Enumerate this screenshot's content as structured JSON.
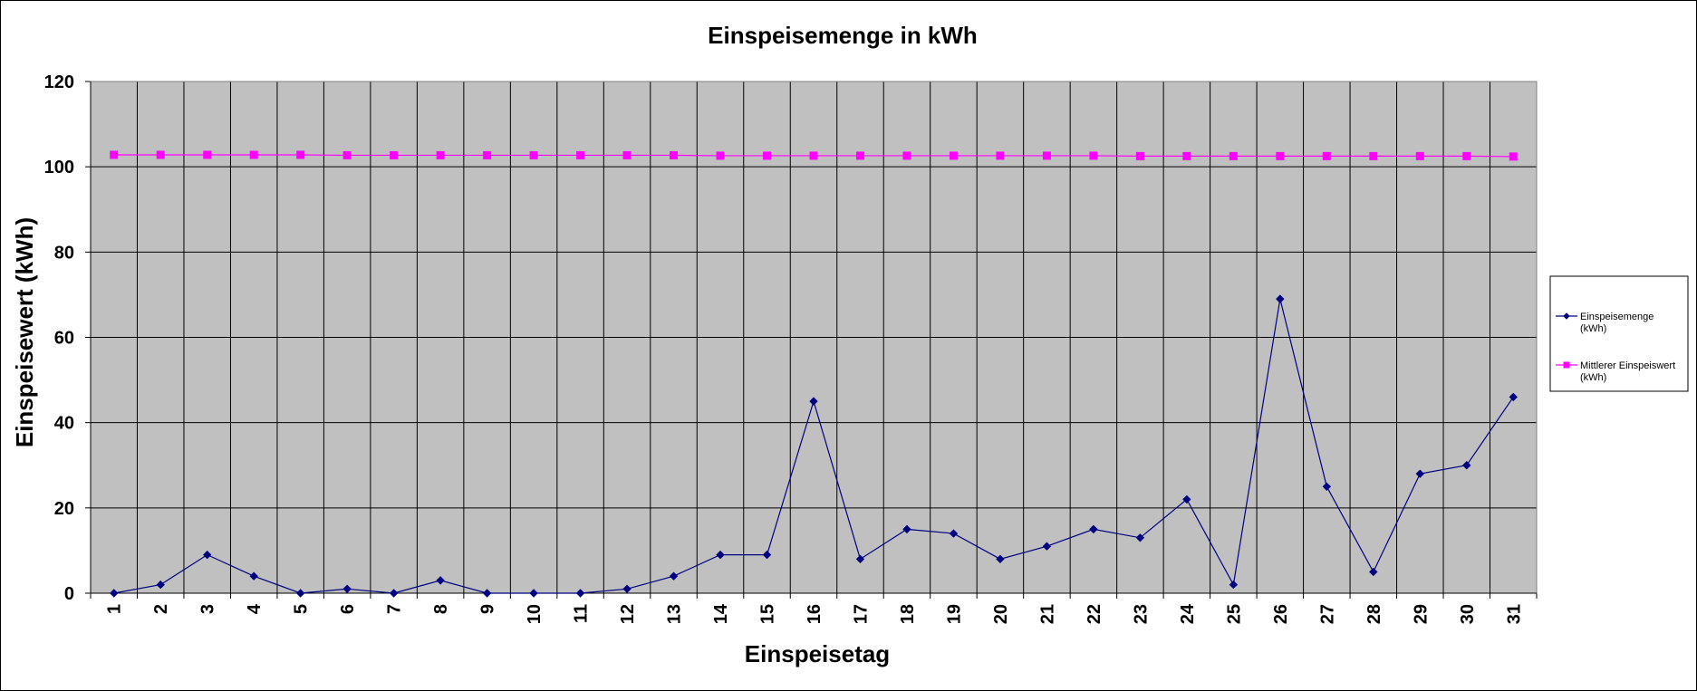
{
  "chart_data": {
    "type": "line",
    "title": "Einspeisemenge in kWh",
    "xlabel": "Einspeisetag",
    "ylabel": "Einspeisewert  (kWh)",
    "categories": [
      "1",
      "2",
      "3",
      "4",
      "5",
      "6",
      "7",
      "8",
      "9",
      "10",
      "11",
      "12",
      "13",
      "14",
      "15",
      "16",
      "17",
      "18",
      "19",
      "20",
      "21",
      "22",
      "23",
      "24",
      "25",
      "26",
      "27",
      "28",
      "29",
      "30",
      "31"
    ],
    "ylim": [
      0,
      120
    ],
    "yticks": [
      "0",
      "20",
      "40",
      "60",
      "80",
      "100",
      "120"
    ],
    "grid": true,
    "legend_position": "right",
    "plot_background": "#C0C0C0",
    "series": [
      {
        "name_lines": [
          "Einspeisemenge",
          "(kWh)"
        ],
        "color": "#000080",
        "marker": "diamond",
        "values": [
          0,
          2,
          9,
          4,
          0,
          1,
          0,
          3,
          0,
          0,
          0,
          1,
          4,
          9,
          9,
          45,
          8,
          15,
          14,
          8,
          11,
          15,
          13,
          22,
          2,
          69,
          25,
          5,
          28,
          30,
          46
        ]
      },
      {
        "name_lines": [
          "Mittlerer Einspeiswert",
          "(kWh)"
        ],
        "color": "#FF00FF",
        "marker": "square",
        "values": [
          102.8,
          102.8,
          102.8,
          102.8,
          102.8,
          102.7,
          102.7,
          102.7,
          102.7,
          102.7,
          102.7,
          102.7,
          102.7,
          102.6,
          102.6,
          102.6,
          102.6,
          102.6,
          102.6,
          102.6,
          102.6,
          102.6,
          102.5,
          102.5,
          102.5,
          102.5,
          102.5,
          102.5,
          102.5,
          102.5,
          102.4
        ]
      }
    ]
  }
}
